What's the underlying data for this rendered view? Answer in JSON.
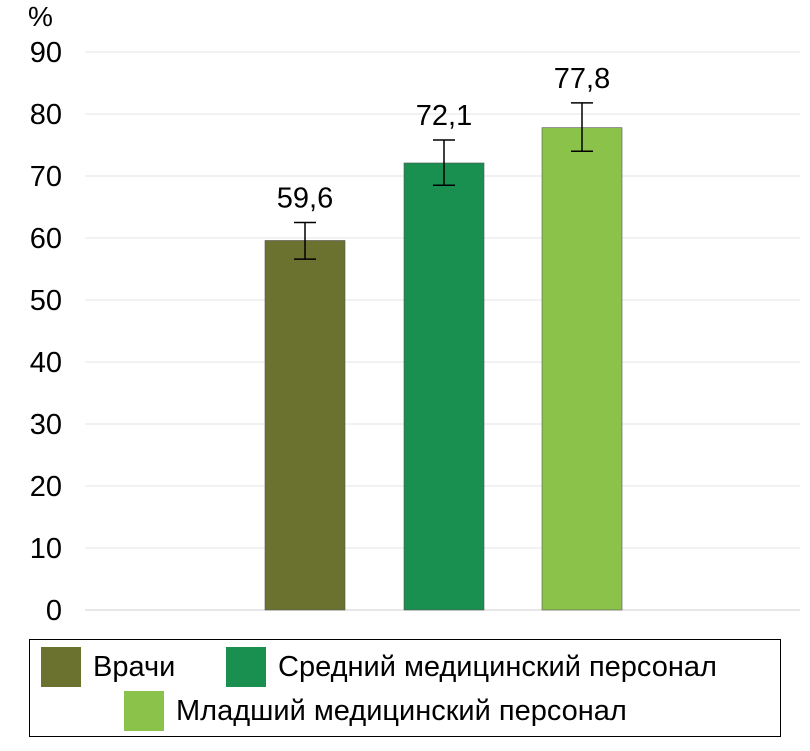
{
  "chart_data": {
    "type": "bar",
    "ylabel": "%",
    "ylim": [
      0,
      90
    ],
    "yticks": [
      "0",
      "10",
      "20",
      "30",
      "40",
      "50",
      "60",
      "70",
      "80",
      "90"
    ],
    "categories": [
      "Врачи",
      "Средний медицинский персонал",
      "Младший медицинский персонал"
    ],
    "values": [
      59.6,
      72.1,
      77.8
    ],
    "value_labels": [
      "59,6",
      "72,1",
      "77,8"
    ],
    "error": [
      {
        "low": 56.6,
        "high": 62.5
      },
      {
        "low": 68.5,
        "high": 75.8
      },
      {
        "low": 74.0,
        "high": 81.8
      }
    ],
    "colors": [
      "#6b7230",
      "#1a9050",
      "#8bc34a"
    ],
    "grid": true,
    "legend": {
      "placement": "bottom",
      "entries": [
        "Врачи",
        "Средний медицинский персонал",
        "Младший медицинский персонал"
      ]
    }
  }
}
